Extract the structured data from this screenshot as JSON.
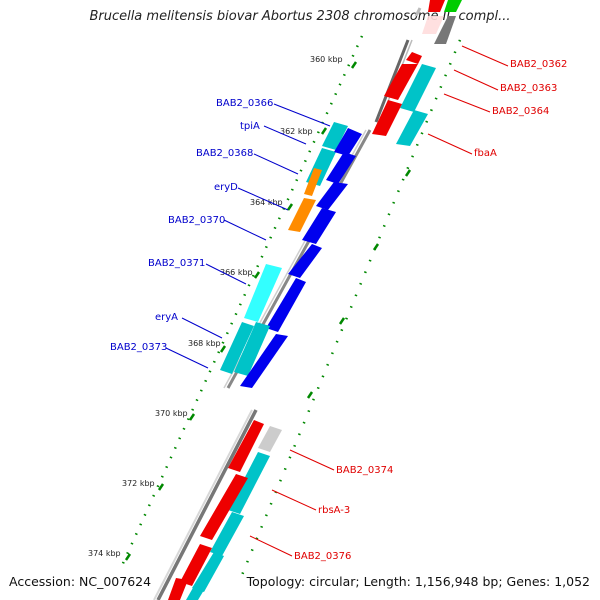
{
  "title": "Brucella melitensis biovar Abortus 2308 chromosome II, compl...",
  "footer": {
    "accession": "Accession: NC_007624",
    "topology": "Topology: circular; Length: 1,156,948 bp; Genes: 1,052"
  },
  "colors": {
    "forward_label": "#0000cc",
    "reverse_label": "#e00000",
    "cyan": "#00c3c8",
    "blue": "#0000ee",
    "red": "#ee0000",
    "orange": "#ff8c00",
    "gray": "#888888",
    "light_gray": "#cccccc",
    "green": "#00cc00",
    "light_cyan": "#33ffff",
    "backbone": "#808080",
    "tick_green": "#008800"
  },
  "tick_labels": [
    "360 kbp",
    "362 kbp",
    "364 kbp",
    "366 kbp",
    "368 kbp",
    "370 kbp",
    "372 kbp",
    "374 kbp"
  ],
  "gene_labels": {
    "forward": [
      "BAB2_0366",
      "tpiA",
      "BAB2_0368",
      "eryD",
      "BAB2_0370",
      "BAB2_0371",
      "eryA",
      "BAB2_0373"
    ],
    "reverse": [
      "BAB2_0362",
      "BAB2_0363",
      "BAB2_0364",
      "fbaA",
      "BAB2_0374",
      "rbsA-3",
      "BAB2_0376"
    ]
  }
}
